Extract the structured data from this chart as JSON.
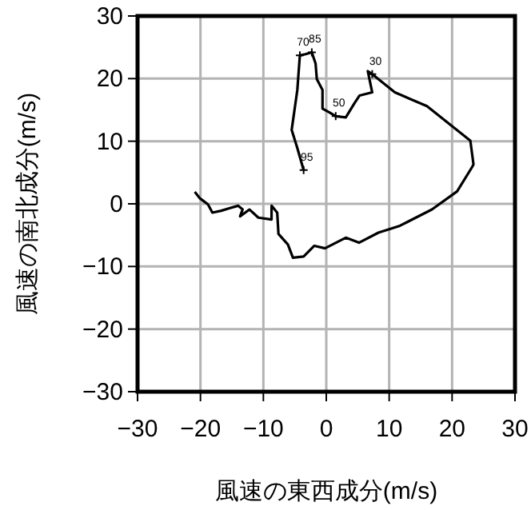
{
  "chart_data": {
    "type": "line",
    "xlabel": "風速の東西成分(m/s)",
    "ylabel": "風速の南北成分(m/s)",
    "xlim": [
      -30,
      30
    ],
    "ylim": [
      -30,
      30
    ],
    "xticks": [
      {
        "value": -30,
        "label": "−30"
      },
      {
        "value": -20,
        "label": "−20"
      },
      {
        "value": -10,
        "label": "−10"
      },
      0,
      10,
      20,
      30
    ],
    "yticks": [
      {
        "value": -30,
        "label": "−30"
      },
      {
        "value": -20,
        "label": "−20"
      },
      {
        "value": -10,
        "label": "−10"
      },
      0,
      10,
      20,
      30
    ],
    "grid": true,
    "marker": "none",
    "line_style": "solid",
    "series": [
      {
        "color": "#000000",
        "x": [
          -20.9,
          -20.1,
          -18.8,
          -18.1,
          -16.7,
          -15.4,
          -14.0,
          -13.3,
          -13.7,
          -12.2,
          -10.8,
          -8.7,
          -8.7,
          -7.8,
          -7.6,
          -6.1,
          -5.3,
          -3.6,
          -1.9,
          -0.2,
          3.1,
          5.2,
          8.3,
          11.7,
          16.8,
          20.8,
          23.2,
          23.4,
          22.9,
          16.0,
          10.9,
          7.3,
          6.6,
          7.3,
          5.3,
          4.5,
          3.1,
          1.5,
          0.5,
          -0.6,
          -0.6,
          -1.5,
          -1.7,
          -2.3,
          -3.3,
          -4.2,
          -4.6,
          -5.5,
          -4.6,
          -3.6
        ],
        "values": [
          1.9,
          0.9,
          -0.1,
          -1.4,
          -1.1,
          -0.7,
          -0.3,
          -0.9,
          -2.0,
          -0.9,
          -2.2,
          -2.5,
          -0.3,
          -1.4,
          -4.8,
          -6.5,
          -8.6,
          -8.4,
          -6.7,
          -7.1,
          -5.4,
          -6.2,
          -4.6,
          -3.5,
          -0.9,
          2.0,
          5.9,
          6.3,
          10.1,
          15.6,
          17.8,
          20.7,
          21.2,
          17.8,
          17.3,
          16.1,
          13.8,
          14.0,
          14.6,
          15.2,
          18.2,
          19.9,
          22.4,
          24.2,
          23.9,
          23.7,
          18.2,
          11.8,
          8.9,
          5.4
        ]
      }
    ],
    "annotations": [
      {
        "text": "85",
        "x": -2.3,
        "y": 24.2
      },
      {
        "text": "70",
        "x": -4.2,
        "y": 23.7
      },
      {
        "text": "30",
        "x": 7.3,
        "y": 20.7
      },
      {
        "text": "50",
        "x": 1.5,
        "y": 14.0
      },
      {
        "text": "95",
        "x": -3.6,
        "y": 5.4
      }
    ]
  }
}
